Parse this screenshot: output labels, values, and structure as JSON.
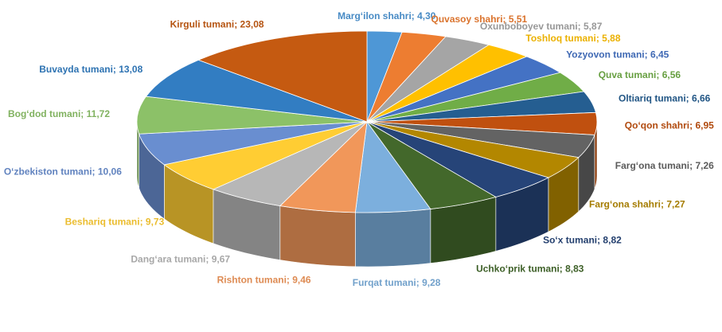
{
  "chart_data": {
    "type": "pie",
    "three_d": true,
    "legend": "none",
    "data_labels": "category; value",
    "slices": [
      {
        "label": "Marg‘ilon shahri; 4,30",
        "value": 4.3,
        "color": "#4e97d6"
      },
      {
        "label": "Quvasoy shahri; 5,51",
        "value": 5.51,
        "color": "#ed7d31"
      },
      {
        "label": "Oxunboboyev tumani; 5,87",
        "value": 5.87,
        "color": "#a5a5a5"
      },
      {
        "label": "Toshloq tumani; 5,88",
        "value": 5.88,
        "color": "#ffc000"
      },
      {
        "label": "Yozyovon tumani; 6,45",
        "value": 6.45,
        "color": "#4472c4"
      },
      {
        "label": "Quva tumani; 6,56",
        "value": 6.56,
        "color": "#70ad47"
      },
      {
        "label": "Oltiariq tumani; 6,66",
        "value": 6.66,
        "color": "#255e91"
      },
      {
        "label": "Qo‘qon shahri; 6,95",
        "value": 6.95,
        "color": "#c0500f"
      },
      {
        "label": "Farg‘ona tumani; 7,26",
        "value": 7.26,
        "color": "#636363"
      },
      {
        "label": "Farg‘ona shahri; 7,27",
        "value": 7.27,
        "color": "#b38700"
      },
      {
        "label": "So‘x tumani; 8,82",
        "value": 8.82,
        "color": "#264478"
      },
      {
        "label": "Uchko‘prik tumani; 8,83",
        "value": 8.83,
        "color": "#43682b"
      },
      {
        "label": "Furqat tumani; 9,28",
        "value": 9.28,
        "color": "#7cafdd"
      },
      {
        "label": "Rishton tumani; 9,46",
        "value": 9.46,
        "color": "#f1975a"
      },
      {
        "label": "Dang‘ara tumani; 9,67",
        "value": 9.67,
        "color": "#b7b7b7"
      },
      {
        "label": "Beshariq tumani; 9,73",
        "value": 9.73,
        "color": "#ffcd33"
      },
      {
        "label": "O‘zbekiston tumani; 10,06",
        "value": 10.06,
        "color": "#698ed0"
      },
      {
        "label": "Bog‘dod tumani; 11,72",
        "value": 11.72,
        "color": "#8cc168"
      },
      {
        "label": "Buvayda tumani; 13,08",
        "value": 13.08,
        "color": "#327dc2"
      },
      {
        "label": "Kirguli tumani; 23,08",
        "value": 23.08,
        "color": "#c55a11"
      }
    ]
  }
}
